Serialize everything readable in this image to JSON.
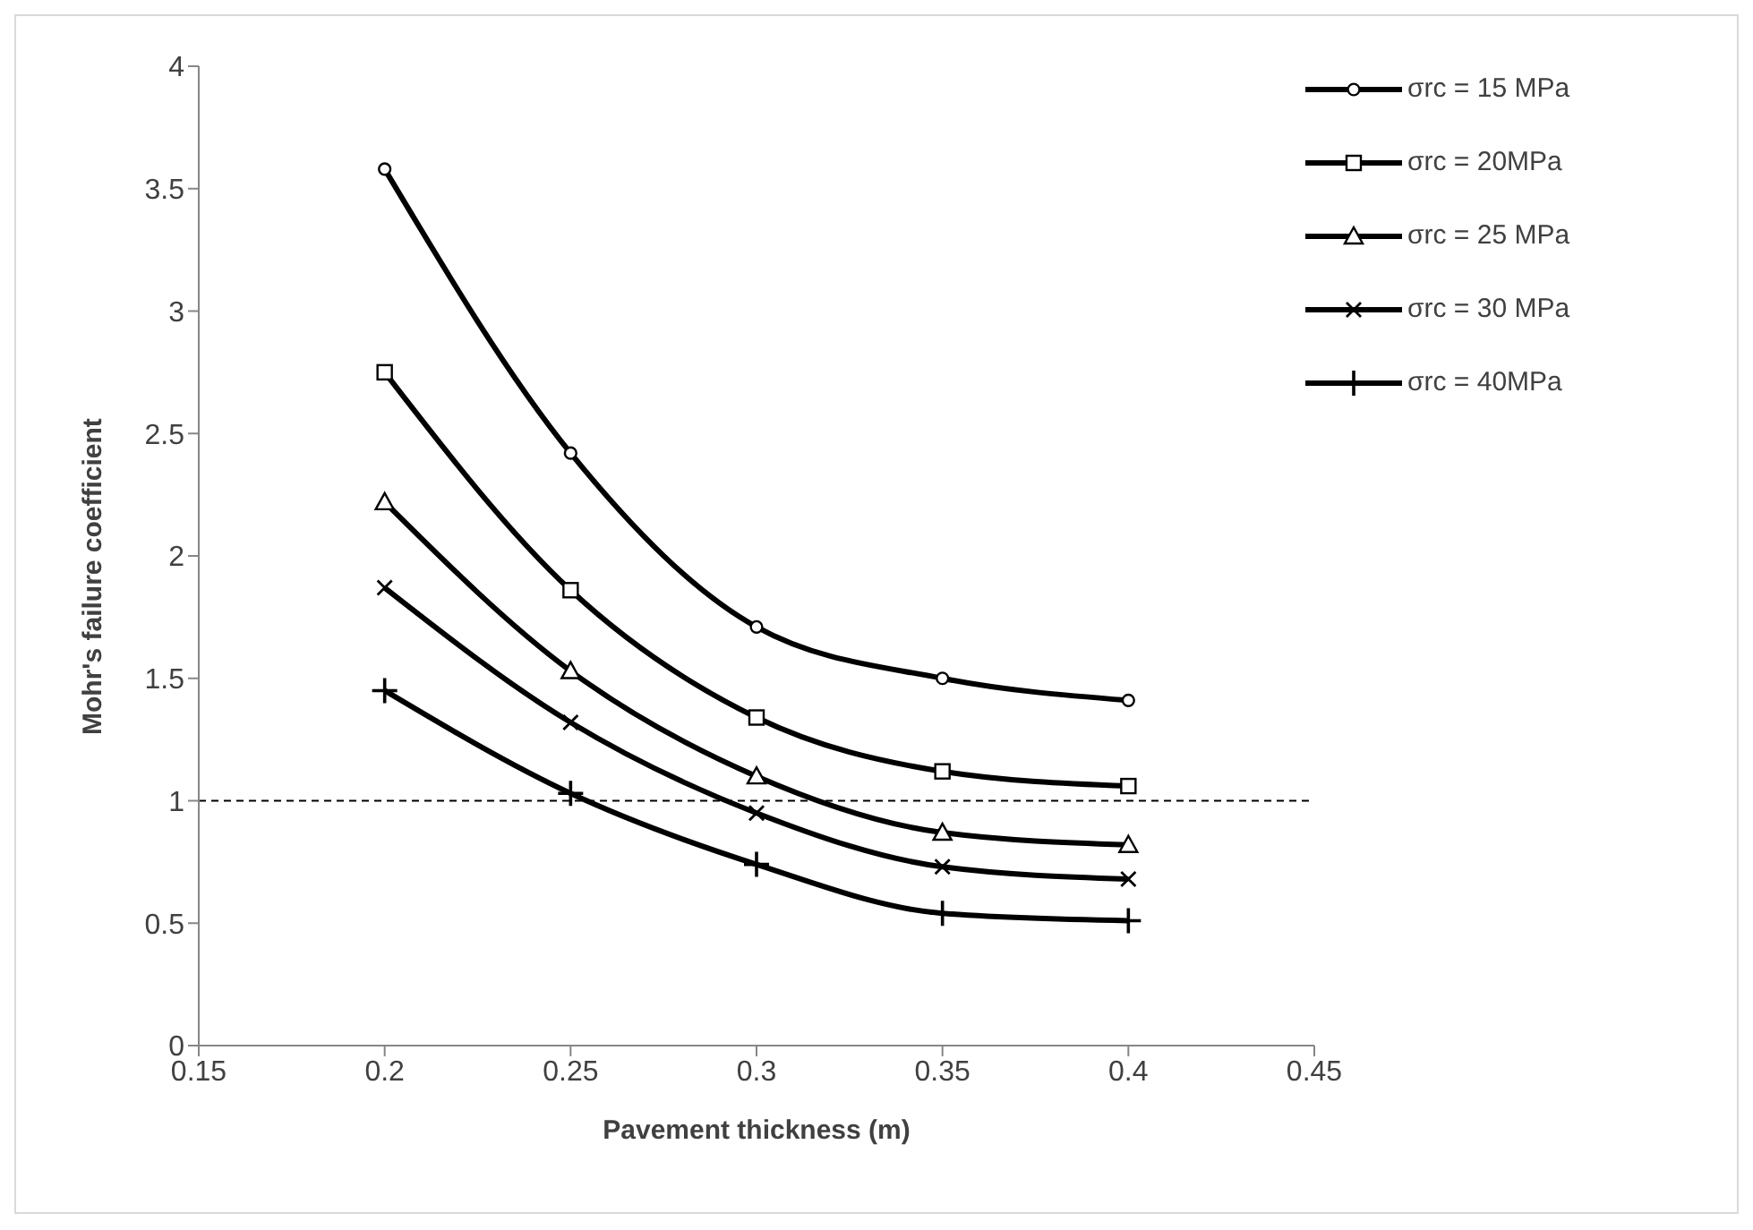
{
  "chart_data": {
    "type": "line",
    "xlabel": "Pavement thickness (m)",
    "ylabel": "Mohr's failure coefficient",
    "x": [
      0.2,
      0.25,
      0.3,
      0.35,
      0.4
    ],
    "series": [
      {
        "name": "σrc = 15 MPa",
        "color": "#000000",
        "marker": "circle",
        "values": [
          3.58,
          2.42,
          1.71,
          1.5,
          1.41
        ]
      },
      {
        "name": "σrc = 20MPa",
        "color": "#000000",
        "marker": "square",
        "values": [
          2.75,
          1.86,
          1.34,
          1.12,
          1.06
        ]
      },
      {
        "name": "σrc = 25 MPa",
        "color": "#000000",
        "marker": "triangle",
        "values": [
          2.22,
          1.53,
          1.1,
          0.87,
          0.82
        ]
      },
      {
        "name": "σrc = 30 MPa",
        "color": "#000000",
        "marker": "cross",
        "values": [
          1.87,
          1.32,
          0.95,
          0.73,
          0.68
        ]
      },
      {
        "name": "σrc = 40MPa",
        "color": "#000000",
        "marker": "plus",
        "values": [
          1.45,
          1.03,
          0.74,
          0.54,
          0.51
        ]
      }
    ],
    "xlim": [
      0.15,
      0.45
    ],
    "xticks": [
      0.15,
      0.2,
      0.25,
      0.3,
      0.35,
      0.4,
      0.45
    ],
    "ylim": [
      0,
      4
    ],
    "yticks": [
      0,
      0.5,
      1,
      1.5,
      2,
      2.5,
      3,
      3.5,
      4
    ],
    "ref_lines": [
      {
        "axis": "y",
        "value": 1,
        "color": "#000000",
        "line_style": "dashed"
      }
    ],
    "grid": false,
    "legend": "top right",
    "line_style": "solid"
  }
}
